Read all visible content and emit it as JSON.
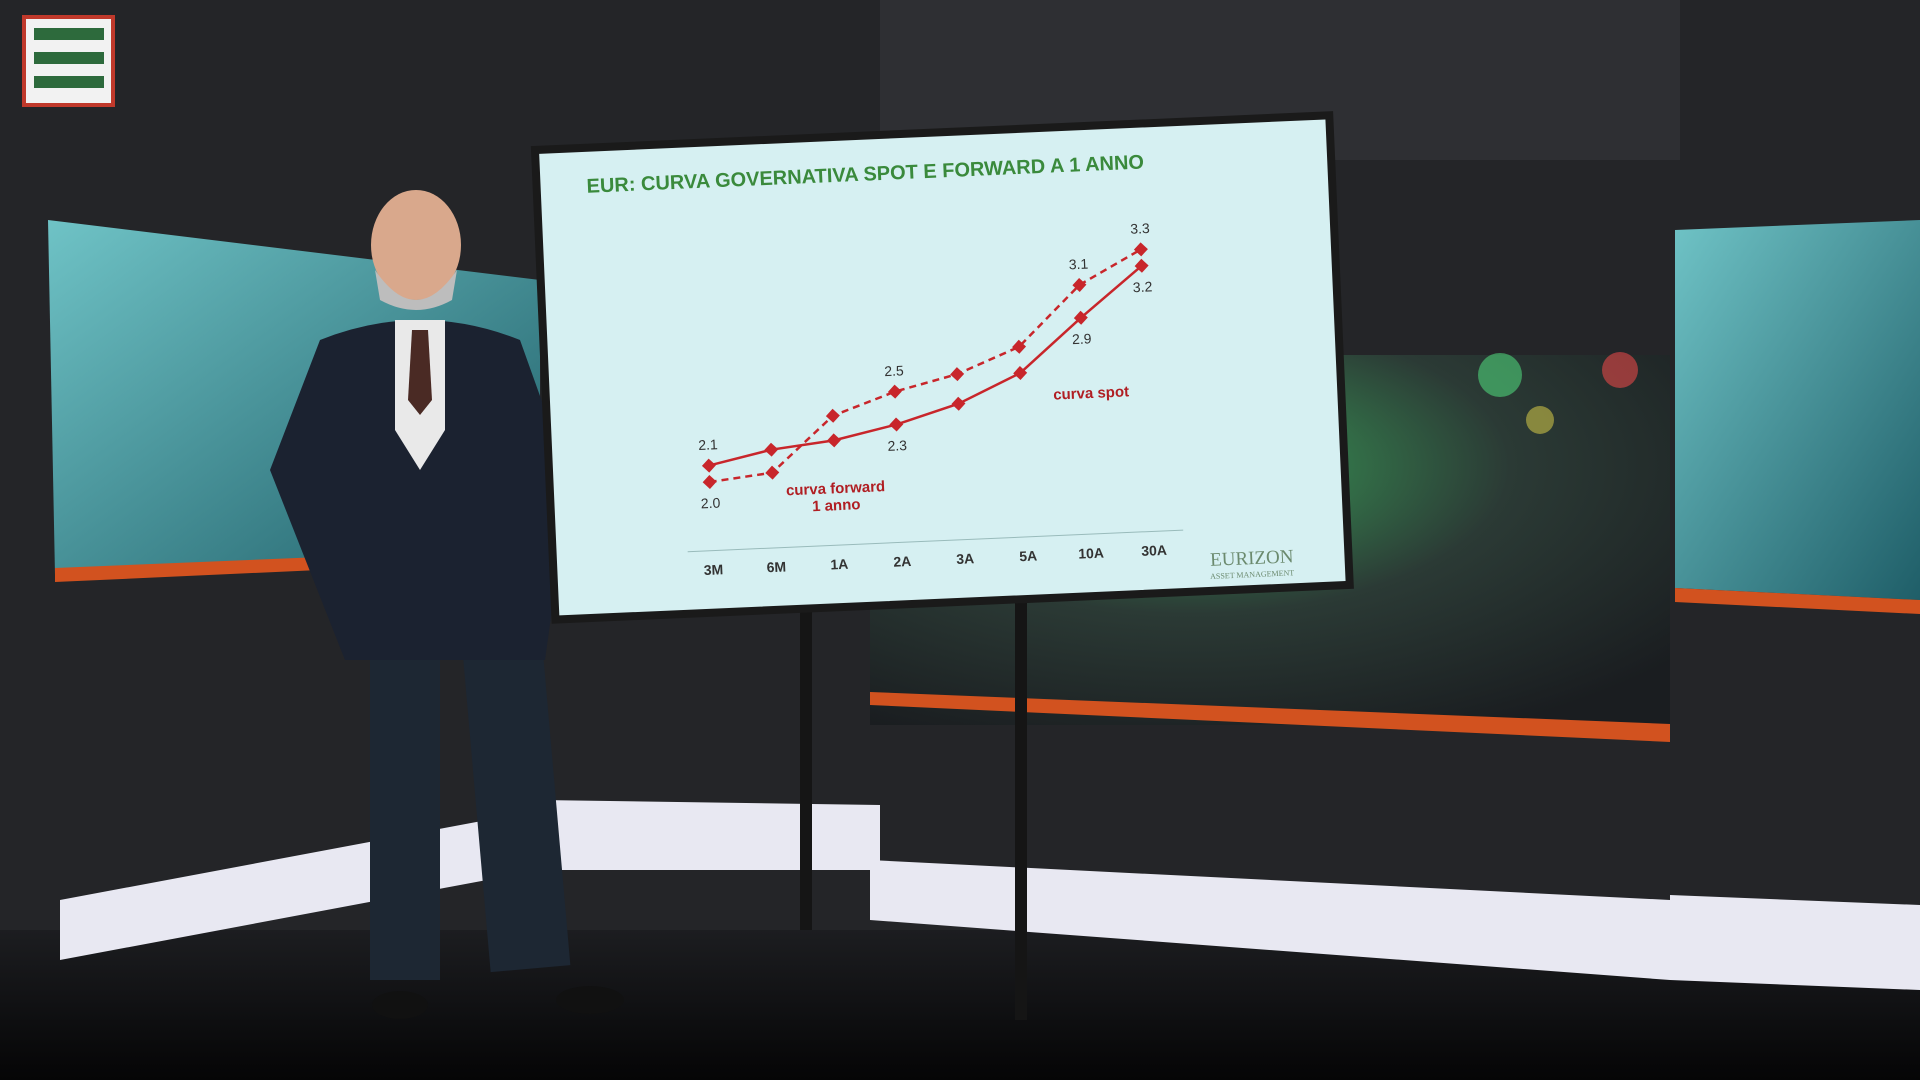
{
  "chart_data": {
    "type": "line",
    "title": "EUR: CURVA GOVERNATIVA SPOT E FORWARD A 1 ANNO",
    "categories": [
      "3M",
      "6M",
      "1A",
      "2A",
      "3A",
      "5A",
      "10A",
      "30A"
    ],
    "series": [
      {
        "name": "curva spot",
        "color": "#c8262b",
        "dashed": false,
        "values": [
          2.1,
          2.18,
          2.22,
          2.3,
          2.41,
          2.58,
          2.9,
          3.2
        ],
        "value_labels": [
          "2.1",
          null,
          null,
          "2.3",
          null,
          null,
          "2.9",
          "3.2"
        ]
      },
      {
        "name": "curva forward 1 anno",
        "color": "#c8262b",
        "dashed": true,
        "values": [
          2.0,
          2.04,
          2.37,
          2.5,
          2.59,
          2.74,
          3.1,
          3.3
        ],
        "value_labels": [
          "2.0",
          null,
          null,
          "2.5",
          null,
          null,
          "3.1",
          "3.3"
        ]
      }
    ],
    "ylim": [
      1.6,
      3.7
    ],
    "grid": false
  },
  "brand": {
    "name": "EURIZON",
    "tagline": "ASSET MANAGEMENT"
  }
}
